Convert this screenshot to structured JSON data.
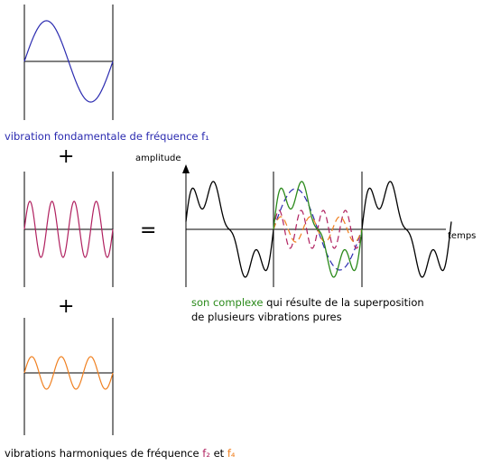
{
  "colors": {
    "fundamental": "#2b2bb0",
    "harmonic2": "#b0205f",
    "harmonic4": "#f08020",
    "complex": "#2a8a1a",
    "axis": "#000000"
  },
  "labels": {
    "fundamental_prefix": "vibration fondamentale de fréquence ",
    "fundamental_freq": "f₁",
    "harmonics_prefix": "vibrations harmoniques de fréquence ",
    "harmonics_f2": "f₂",
    "harmonics_and": " et ",
    "harmonics_f4": "f₄",
    "complex_highlight": "son complexe",
    "complex_rest": " qui résulte de la superposition",
    "complex_line2": "de plusieurs vibrations pures",
    "y_axis": "amplitude",
    "x_axis": "temps"
  },
  "symbols": {
    "plus": "+",
    "equals": "="
  }
}
